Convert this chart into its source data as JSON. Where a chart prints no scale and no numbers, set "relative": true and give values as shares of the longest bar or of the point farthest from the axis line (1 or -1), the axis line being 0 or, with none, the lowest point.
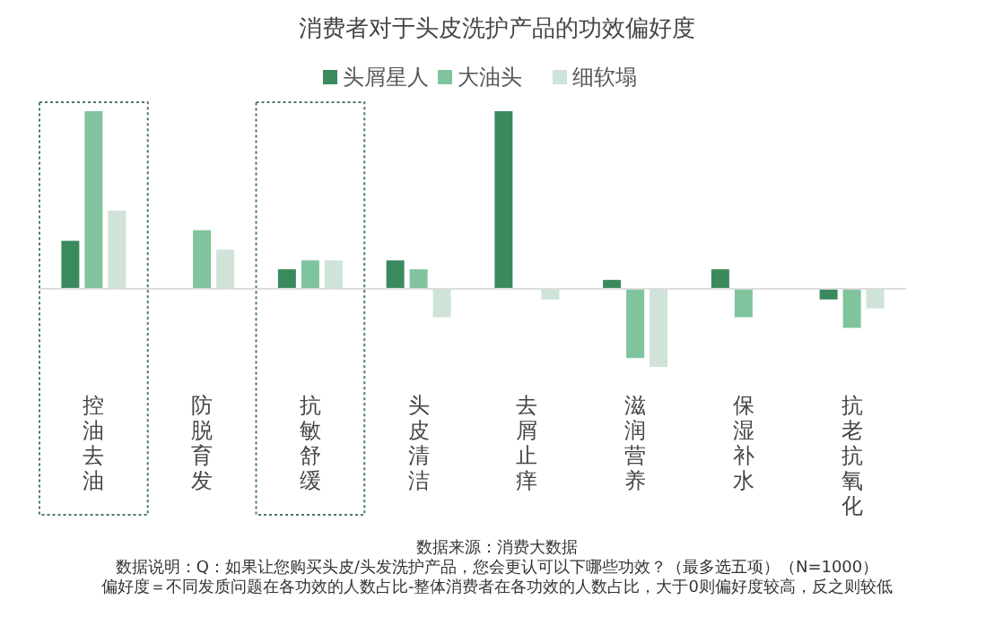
{
  "chart_data": {
    "type": "bar",
    "title": "消费者对于头皮洗护产品的功效偏好度",
    "relative": true,
    "legend": "top right",
    "categories": [
      "控油去油",
      "防脱育发",
      "抗敏舒缓",
      "头皮清洁",
      "去屑止痒",
      "滋润营养",
      "保湿补水",
      "抗老抗氧化"
    ],
    "series": [
      {
        "name": "头屑星人",
        "color": "#3a8a5e",
        "values": [
          0.27,
          0,
          0.11,
          0.16,
          1.0,
          0.05,
          0.11,
          -0.06
        ]
      },
      {
        "name": "大油头",
        "color": "#7fc49c",
        "values": [
          1.0,
          0.33,
          0.16,
          0.11,
          0,
          -0.39,
          -0.16,
          -0.22
        ]
      },
      {
        "name": "细软塌",
        "color": "#cfe3d8",
        "values": [
          0.44,
          0.22,
          0.16,
          -0.16,
          -0.06,
          -0.44,
          0,
          -0.11
        ]
      }
    ],
    "annotations": [
      "数据来源：消费大数据",
      "数据说明：Q：如果让您购买头皮/头发洗护产品，您会更认可以下哪些功效？（最多选五项）（N=1000）",
      "偏好度＝不同发质问题在各功效的人数占比-整体消费者在各功效的人数占比，大于0则偏好度较高，反之则较低"
    ]
  }
}
